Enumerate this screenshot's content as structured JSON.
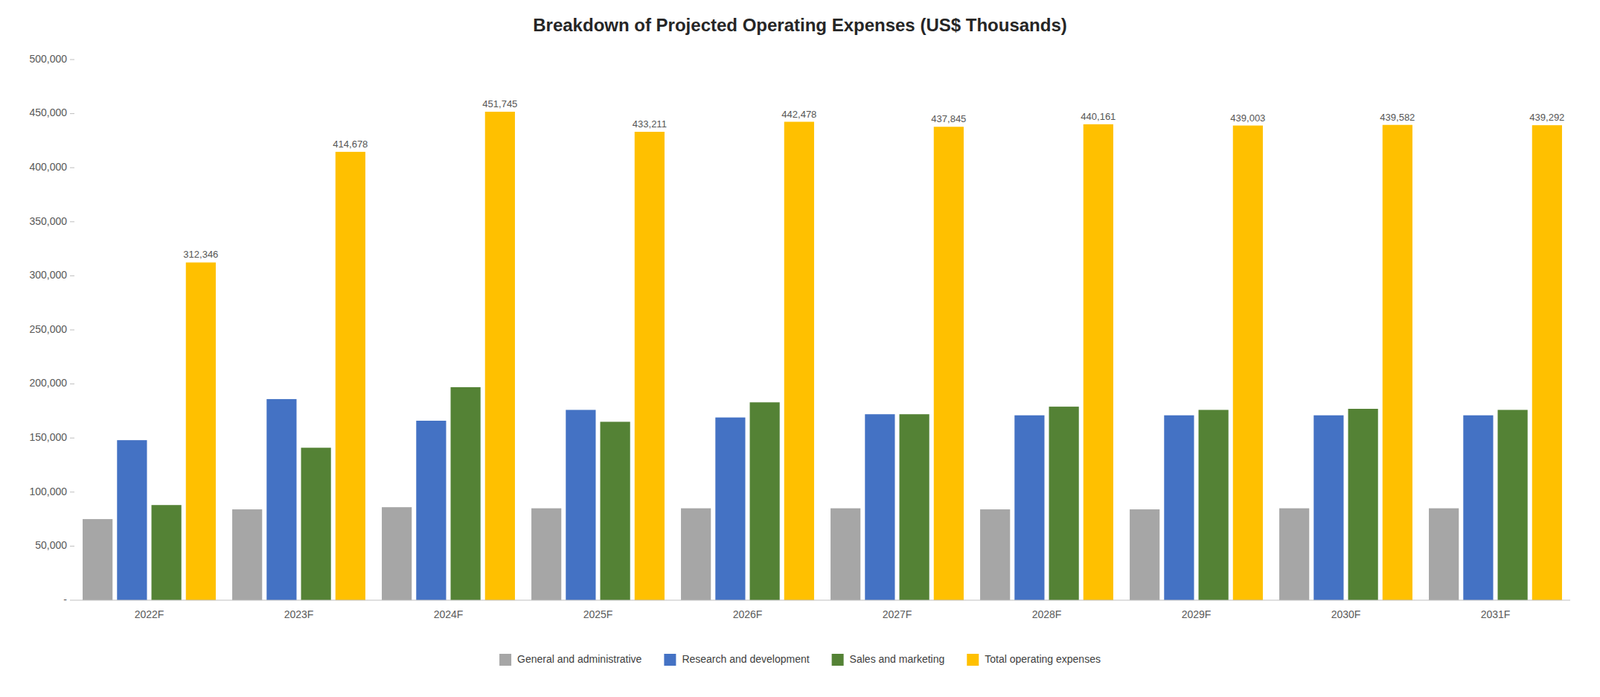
{
  "chart_data": {
    "type": "bar",
    "title": "Breakdown of Projected Operating Expenses (US$ Thousands)",
    "categories": [
      "2022F",
      "2023F",
      "2024F",
      "2025F",
      "2026F",
      "2027F",
      "2028F",
      "2029F",
      "2030F",
      "2031F"
    ],
    "series": [
      {
        "name": "General and administrative",
        "color": "#A6A6A6",
        "values": [
          75000,
          84000,
          86000,
          85000,
          85000,
          85000,
          84000,
          84000,
          85000,
          85000
        ]
      },
      {
        "name": "Research and development",
        "color": "#4472C4",
        "values": [
          148000,
          186000,
          166000,
          176000,
          169000,
          172000,
          171000,
          171000,
          171000,
          171000
        ]
      },
      {
        "name": "Sales and marketing",
        "color": "#548235",
        "values": [
          88000,
          141000,
          197000,
          165000,
          183000,
          172000,
          179000,
          176000,
          177000,
          176000
        ]
      },
      {
        "name": "Total operating expenses",
        "color": "#FFC000",
        "values": [
          312346,
          414678,
          451745,
          433211,
          442478,
          437845,
          440161,
          439003,
          439582,
          439292
        ],
        "data_labels": true,
        "value_labels": [
          "312,346",
          "414,678",
          "451,745",
          "433,211",
          "442,478",
          "437,845",
          "440,161",
          "439,003",
          "439,582",
          "439,292"
        ]
      }
    ],
    "ylim": [
      0,
      500000
    ],
    "yticks": [
      {
        "value": 0,
        "label": "-"
      },
      {
        "value": 50000,
        "label": "50,000"
      },
      {
        "value": 100000,
        "label": "100,000"
      },
      {
        "value": 150000,
        "label": "150,000"
      },
      {
        "value": 200000,
        "label": "200,000"
      },
      {
        "value": 250000,
        "label": "250,000"
      },
      {
        "value": 300000,
        "label": "300,000"
      },
      {
        "value": 350000,
        "label": "350,000"
      },
      {
        "value": 400000,
        "label": "400,000"
      },
      {
        "value": 450000,
        "label": "450,000"
      },
      {
        "value": 500000,
        "label": "500,000"
      }
    ],
    "grid": false,
    "legend": "bottom"
  }
}
